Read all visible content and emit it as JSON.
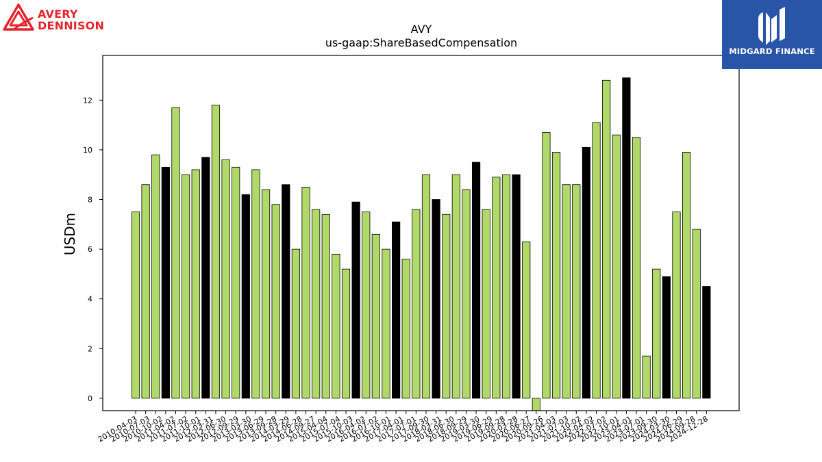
{
  "branding": {
    "left_logo": {
      "line1": "AVERY",
      "line2": "DENNISON",
      "color": "#e4232d",
      "icon": "avery-triangle-logo-icon"
    },
    "right_logo": {
      "name": "MIDGARD FINANCE",
      "background": "#2855a8",
      "icon": "midgard-m-logo-icon"
    }
  },
  "chart_data": {
    "type": "bar",
    "title": "AVY",
    "subtitle": "us-gaap:ShareBasedCompensation",
    "xlabel": "",
    "ylabel": "USDm",
    "ylim": [
      -0.5,
      13.8
    ],
    "yticks": [
      0,
      2,
      4,
      6,
      8,
      10,
      12
    ],
    "grid": false,
    "colors": {
      "quarter": "#b0d96a",
      "year_end": "#000000",
      "edge": "#000000"
    },
    "x_tick_labels": [
      "2010-04-03",
      "2010-07-03",
      "2010-10-02",
      "2011-04-02",
      "2011-07-02",
      "2011-10-01",
      "2012-03-31",
      "2012-06-30",
      "2012-09-29",
      "2013-03-30",
      "2013-06-29",
      "2013-09-28",
      "2014-03-29",
      "2014-06-28",
      "2014-09-27",
      "2015-04-04",
      "2015-07-04",
      "2015-10-03",
      "2016-04-02",
      "2016-07-02",
      "2016-10-01",
      "2017-04-01",
      "2017-07-01",
      "2017-09-30",
      "2018-03-31",
      "2018-06-30",
      "2018-09-29",
      "2019-03-30",
      "2019-06-29",
      "2019-09-28",
      "2020-03-28",
      "2020-06-27",
      "2020-09-26",
      "2021-04-03",
      "2021-07-03",
      "2021-10-02",
      "2022-04-02",
      "2022-07-02",
      "2022-10-01",
      "2023-04-01",
      "2023-07-01",
      "2023-09-30",
      "2024-03-30",
      "2024-06-29",
      "2024-09-28",
      "2024-12-28"
    ],
    "series": [
      {
        "values": [
          7.5,
          8.6,
          9.8,
          9.3,
          11.7,
          9.0,
          9.2,
          9.7,
          11.8,
          9.6,
          9.3,
          8.2,
          9.2,
          8.4,
          7.8,
          8.6,
          6.0,
          8.5,
          7.6,
          7.4,
          5.8,
          5.2,
          7.9,
          7.5,
          6.6,
          6.0,
          7.1,
          5.6,
          7.6,
          9.0,
          8.0,
          7.4,
          9.0,
          8.4,
          9.5,
          7.6,
          8.9,
          9.0,
          9.0,
          6.3,
          -0.5,
          10.7,
          9.9,
          8.6,
          8.6,
          10.1,
          11.1,
          12.8,
          10.6,
          12.9,
          10.5,
          1.7,
          5.2,
          4.9,
          7.5,
          9.9,
          6.8,
          4.5
        ],
        "year_end": [
          false,
          false,
          false,
          true,
          false,
          false,
          false,
          true,
          false,
          false,
          false,
          true,
          false,
          false,
          false,
          true,
          false,
          false,
          false,
          false,
          false,
          false,
          true,
          false,
          false,
          false,
          true,
          false,
          false,
          false,
          true,
          false,
          false,
          false,
          true,
          false,
          false,
          false,
          true,
          false,
          false,
          false,
          false,
          false,
          false,
          true,
          false,
          false,
          false,
          true,
          false,
          false,
          false,
          true,
          false,
          false,
          false,
          true
        ]
      }
    ]
  }
}
